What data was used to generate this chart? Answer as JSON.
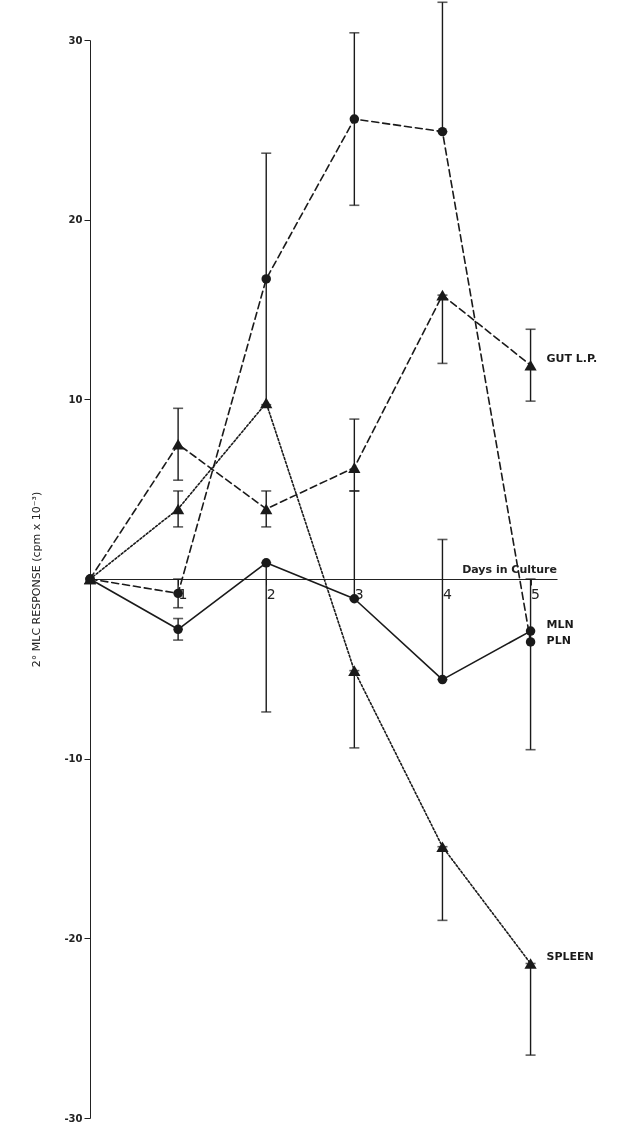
{
  "chart_data": {
    "type": "line",
    "xlabel": "Days in Culture",
    "ylabel": "2° MLC RESPONSE (cpm x 10⁻³)",
    "xlim": [
      0,
      5.3
    ],
    "xticks": [
      1,
      2,
      3,
      4,
      5
    ],
    "ylim": [
      -30,
      30
    ],
    "yticks": [
      -30,
      -20,
      -10,
      10,
      20,
      30
    ],
    "grid": false,
    "series": [
      {
        "name": "PLN",
        "color": "#1a1a1a",
        "marker": "circle",
        "line_style": "dashed",
        "x": [
          0,
          1,
          2,
          3,
          4,
          5
        ],
        "values": [
          0,
          -0.8,
          16.7,
          25.6,
          24.9,
          -3.5
        ],
        "errors": [
          null,
          0.8,
          [
            9.7,
            23.7
          ],
          4.8,
          [
            24.9,
            32.1
          ],
          [
            -9.5,
            0
          ]
        ]
      },
      {
        "name": "MLN",
        "color": "#1a1a1a",
        "marker": "circle",
        "line_style": "solid",
        "x": [
          0,
          1,
          2,
          3,
          4,
          5
        ],
        "values": [
          0,
          -2.8,
          0.9,
          -1.1,
          -5.6,
          -2.9
        ],
        "errors": [
          null,
          0.6,
          [
            -7.4,
            0.9
          ],
          [
            -1.1,
            4.9
          ],
          [
            -5.6,
            2.2
          ],
          null
        ]
      },
      {
        "name": "GUT L.P.",
        "color": "#1a1a1a",
        "marker": "triangle",
        "line_style": "dashed",
        "x": [
          0,
          1,
          2,
          3,
          4,
          5
        ],
        "values": [
          0,
          7.5,
          3.9,
          6.2,
          15.8,
          11.9
        ],
        "errors": [
          null,
          2,
          1,
          [
            4.9,
            8.9
          ],
          [
            12,
            15.8
          ],
          2
        ]
      },
      {
        "name": "SPLEEN",
        "color": "#1a1a1a",
        "marker": "triangle",
        "line_style": "dotted",
        "x": [
          0,
          1,
          2,
          3,
          4,
          5
        ],
        "values": [
          0,
          3.9,
          9.8,
          -5.1,
          -14.9,
          -21.4
        ],
        "errors": [
          null,
          1,
          null,
          [
            -9.4,
            -5.1
          ],
          [
            -19,
            -14.9
          ],
          [
            -26.5,
            -21.4
          ]
        ]
      }
    ]
  }
}
